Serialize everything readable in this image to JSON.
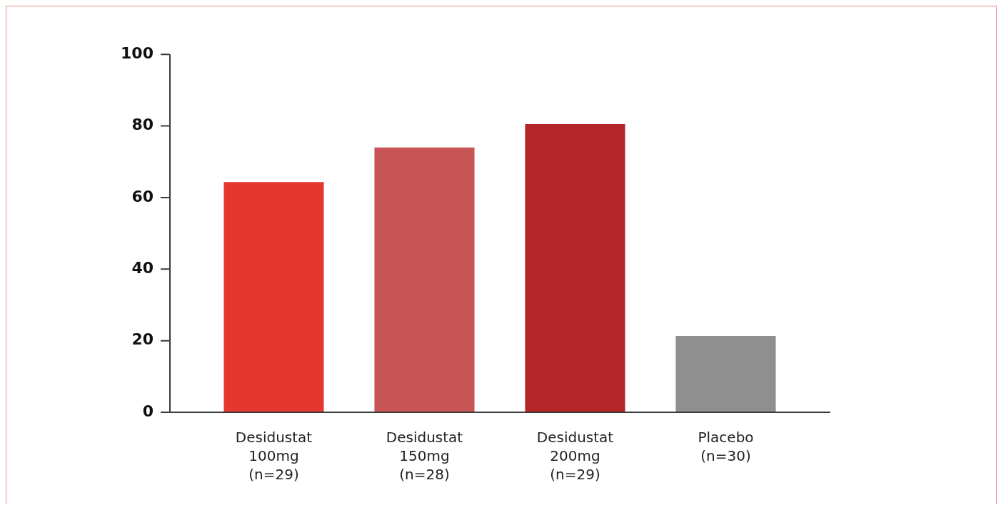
{
  "chart_data": {
    "type": "bar",
    "categories": [
      "Desidustat 100mg (n=29)",
      "Desidustat 150mg (n=28)",
      "Desidustat 200mg (n=29)",
      "Placebo (n=30)"
    ],
    "values": [
      64.3,
      74,
      80.5,
      21.3
    ],
    "colors": [
      "#e53630",
      "#c85455",
      "#b52528",
      "#8f8f8f"
    ],
    "ylim": [
      0,
      100
    ],
    "yticks": [
      0,
      20,
      40,
      60,
      80,
      100
    ]
  }
}
